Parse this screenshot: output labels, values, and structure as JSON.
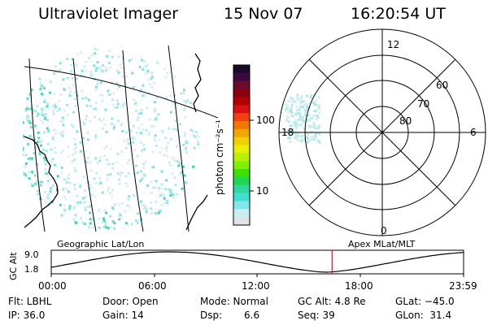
{
  "header": {
    "instrument": "Ultraviolet Imager",
    "date": "15 Nov 07",
    "time": "16:20:54 UT"
  },
  "colorbar": {
    "label": "photon cm⁻²s⁻¹",
    "ticks": [
      "100",
      "10"
    ],
    "colors": [
      "#1a0a2a",
      "#3a0a40",
      "#6a0a30",
      "#8a0010",
      "#b00000",
      "#d81010",
      "#f04010",
      "#f07800",
      "#f0a800",
      "#f0d000",
      "#e8f000",
      "#b8f000",
      "#80f000",
      "#40e000",
      "#20d850",
      "#30d8a0",
      "#40e0d0",
      "#80e8e8",
      "#c8eef0",
      "#e0e4e8"
    ]
  },
  "geographic": {
    "label": "Geographic Lat/Lon"
  },
  "polar": {
    "label": "Apex MLat/MLT",
    "mlt_labels": {
      "top": "12",
      "left": "18",
      "right": "6",
      "bottom": "0"
    },
    "lat_labels": [
      "60",
      "70",
      "80"
    ]
  },
  "timeline": {
    "axis_title": "GC Alt",
    "y_ticks": [
      "9.0",
      "1.8"
    ],
    "x_ticks": [
      "00:00",
      "06:00",
      "12:00",
      "18:00",
      "23:59"
    ],
    "current_time_fraction": 0.6811
  },
  "status": {
    "filter": "Flt: LBHL",
    "ip": "IP: 36.0",
    "door": "Door: Open",
    "gain": "Gain: 14",
    "mode": "Mode: Normal",
    "dsp_label": "Dsp:",
    "dsp_value": "6.6",
    "gc_alt": "GC Alt: 4.8 Re",
    "seq": "Seq: 39",
    "glat": "GLat: −45.0",
    "glon": "GLon:  31.4"
  }
}
